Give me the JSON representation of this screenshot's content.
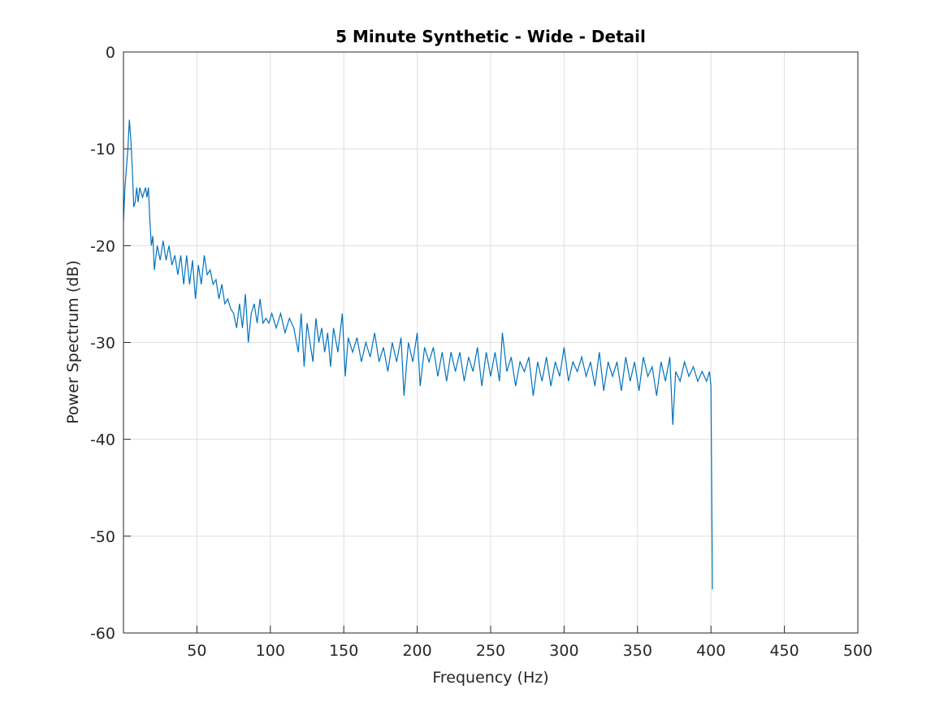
{
  "chart_data": {
    "type": "line",
    "title": "5 Minute Synthetic - Wide - Detail",
    "xlabel": "Frequency (Hz)",
    "ylabel": "Power Spectrum (dB)",
    "xlim": [
      0,
      500
    ],
    "ylim": [
      -60,
      0
    ],
    "xticks": [
      50,
      100,
      150,
      200,
      250,
      300,
      350,
      400,
      450,
      500
    ],
    "yticks": [
      -60,
      -50,
      -40,
      -30,
      -20,
      -10,
      0
    ],
    "grid": true,
    "series": [
      {
        "color": "#0072bd",
        "x": [
          0,
          1,
          3,
          4,
          5,
          6,
          7,
          8,
          9,
          10,
          11,
          13,
          15,
          16,
          17,
          18,
          19,
          20,
          21,
          23,
          25,
          27,
          29,
          31,
          33,
          35,
          37,
          39,
          41,
          43,
          45,
          47,
          49,
          51,
          53,
          55,
          57,
          59,
          61,
          63,
          65,
          67,
          69,
          71,
          73,
          75,
          77,
          79,
          81,
          83,
          85,
          87,
          89,
          91,
          93,
          95,
          97,
          99,
          101,
          104,
          107,
          110,
          113,
          116,
          119,
          121,
          123,
          125,
          127,
          129,
          131,
          133,
          135,
          137,
          139,
          141,
          143,
          146,
          149,
          151,
          153,
          156,
          159,
          162,
          165,
          168,
          171,
          174,
          177,
          180,
          183,
          186,
          189,
          191,
          194,
          197,
          200,
          202,
          205,
          208,
          211,
          214,
          217,
          220,
          223,
          226,
          229,
          232,
          235,
          238,
          241,
          244,
          247,
          250,
          253,
          256,
          258,
          261,
          264,
          267,
          270,
          273,
          276,
          279,
          282,
          285,
          288,
          291,
          294,
          297,
          300,
          303,
          306,
          309,
          312,
          315,
          318,
          321,
          324,
          327,
          330,
          333,
          336,
          339,
          342,
          345,
          348,
          351,
          354,
          357,
          360,
          363,
          366,
          369,
          372,
          374,
          376,
          379,
          382,
          385,
          388,
          391,
          394,
          397,
          399,
          400,
          401
        ],
        "values": [
          -17.5,
          -14,
          -10,
          -7,
          -9,
          -12,
          -16,
          -15.5,
          -14,
          -15.5,
          -14,
          -15,
          -14,
          -15,
          -14,
          -17.5,
          -20,
          -19,
          -22.5,
          -20,
          -21.5,
          -19.5,
          -21.5,
          -20,
          -22,
          -21,
          -23,
          -21,
          -24,
          -21,
          -24,
          -21.5,
          -25.5,
          -22,
          -24,
          -21,
          -23,
          -22.5,
          -24,
          -23.5,
          -25.5,
          -24,
          -26,
          -25.5,
          -26.5,
          -27,
          -28.5,
          -26,
          -28.5,
          -25,
          -30,
          -27,
          -26,
          -28,
          -25.5,
          -28,
          -27.5,
          -28,
          -27,
          -28.5,
          -27,
          -29,
          -27.5,
          -28.5,
          -31,
          -27,
          -32.5,
          -28,
          -30,
          -32,
          -27.5,
          -30,
          -28.5,
          -31,
          -29,
          -32.5,
          -28.5,
          -31,
          -27,
          -33.5,
          -29.5,
          -31,
          -29.5,
          -32,
          -30,
          -31.5,
          -29,
          -32,
          -30.5,
          -33,
          -30,
          -32,
          -29.5,
          -35.5,
          -30,
          -32,
          -29,
          -34.5,
          -30.5,
          -32,
          -30.5,
          -33.5,
          -31,
          -34,
          -31,
          -33,
          -31,
          -34,
          -31.5,
          -33,
          -30.5,
          -34.5,
          -31,
          -33.5,
          -31,
          -34,
          -29,
          -33,
          -31.5,
          -34.5,
          -32,
          -33,
          -31.5,
          -35.5,
          -32,
          -34,
          -31.5,
          -34.5,
          -32,
          -33.5,
          -30.5,
          -34,
          -32,
          -33,
          -31.5,
          -33.5,
          -32,
          -34.5,
          -31,
          -35,
          -32,
          -33.5,
          -32,
          -35,
          -31.5,
          -34,
          -32,
          -35,
          -31.5,
          -33.5,
          -32.5,
          -35.5,
          -32,
          -34,
          -31.5,
          -38.5,
          -33,
          -34,
          -32,
          -33.5,
          -32.5,
          -34,
          -33,
          -34,
          -33,
          -34.5,
          -55.5
        ]
      }
    ]
  }
}
